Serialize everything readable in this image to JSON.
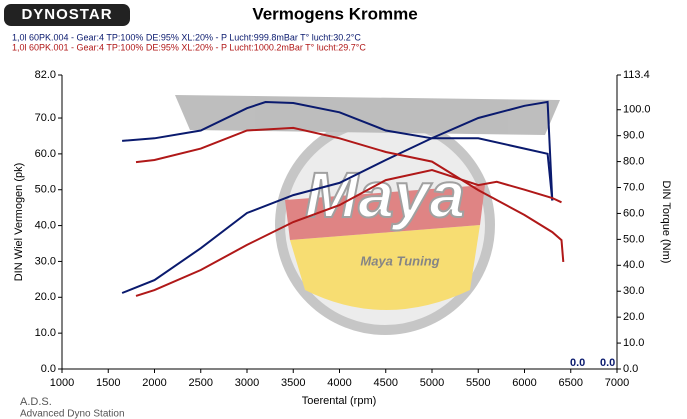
{
  "chart_data": {
    "type": "line",
    "logo": "DYNOSTAR",
    "title": "Vermogens Kromme",
    "x_label": "Toerental (rpm)",
    "y_label": "DIN Wiel Vermogen (pk)",
    "y2_label": "DIN Torque (Nm)",
    "footer": [
      "A.D.S.",
      "Advanced Dyno Station"
    ],
    "watermark": [
      "Maya",
      "Maya Tuning"
    ],
    "readouts": [
      "0.0",
      "0.0"
    ],
    "xlim": [
      1000,
      7000
    ],
    "xticks": [
      1000,
      1500,
      2000,
      2500,
      3000,
      3500,
      4000,
      4500,
      5000,
      5500,
      6000,
      6500,
      7000
    ],
    "ylim": [
      0,
      82
    ],
    "yticks": [
      {
        "value": 0,
        "label": "0.0"
      },
      {
        "value": 10,
        "label": "10.0"
      },
      {
        "value": 20,
        "label": "20.0"
      },
      {
        "value": 30,
        "label": "30.0"
      },
      {
        "value": 40,
        "label": "40.0"
      },
      {
        "value": 50,
        "label": "50.0"
      },
      {
        "value": 60,
        "label": "60.0"
      },
      {
        "value": 70,
        "label": "70.0"
      },
      {
        "value": 82,
        "label": "82.0"
      }
    ],
    "y2lim": [
      0,
      113.4
    ],
    "y2ticks": [
      {
        "value": 0,
        "label": "0.0"
      },
      {
        "value": 10,
        "label": "10.0"
      },
      {
        "value": 20,
        "label": "20.0"
      },
      {
        "value": 30,
        "label": "30.0"
      },
      {
        "value": 40,
        "label": "40.0"
      },
      {
        "value": 50,
        "label": "50.0"
      },
      {
        "value": 60,
        "label": "60.0"
      },
      {
        "value": 70,
        "label": "70.0"
      },
      {
        "value": 80,
        "label": "80.0"
      },
      {
        "value": 90,
        "label": "90.0"
      },
      {
        "value": 100,
        "label": "100.0"
      },
      113.4
    ],
    "runs": [
      {
        "label": "1,0l 60PK.004 - Gear:4 TP:100% DE:95% XL:20%      - P Lucht:999.8mBar T° lucht:30.2°C",
        "color": "#0a1a6e",
        "power": {
          "x": [
            1650,
            2000,
            2500,
            3000,
            3500,
            4000,
            4500,
            5000,
            5500,
            6000,
            6250,
            6300
          ],
          "values": [
            21.2,
            24.8,
            33.7,
            43.5,
            48.5,
            51.9,
            58.3,
            64.4,
            70,
            73.4,
            74.5,
            47
          ]
        },
        "torque": {
          "x": [
            1650,
            2000,
            2500,
            3000,
            3200,
            3500,
            4000,
            4500,
            5000,
            5500,
            6000,
            6250,
            6300
          ],
          "values": [
            88,
            89,
            92,
            100.6,
            103,
            102.6,
            99,
            92,
            89,
            89,
            85,
            83,
            65
          ]
        }
      },
      {
        "label": "1,0l 60PK.001 - Gear:4 TP:100% DE:95% XL:20%   - P Lucht:1000.2mBar T° lucht:29.7°C",
        "color": "#b01818",
        "power": {
          "x": [
            1800,
            2000,
            2500,
            3000,
            3500,
            4000,
            4500,
            5000,
            5500,
            5700,
            6000,
            6300,
            6400
          ],
          "values": [
            20.4,
            22,
            27.6,
            34.6,
            41,
            45.7,
            52.7,
            55.5,
            51.3,
            52.2,
            50,
            47.7,
            46.5
          ]
        },
        "torque": {
          "x": [
            1800,
            2000,
            2500,
            3000,
            3500,
            4000,
            4500,
            5000,
            5500,
            6000,
            6300,
            6400,
            6420
          ],
          "values": [
            79.8,
            80.6,
            85,
            92,
            93,
            89,
            83.7,
            80,
            69,
            59.4,
            52.8,
            49.7,
            41.3
          ]
        }
      }
    ]
  }
}
